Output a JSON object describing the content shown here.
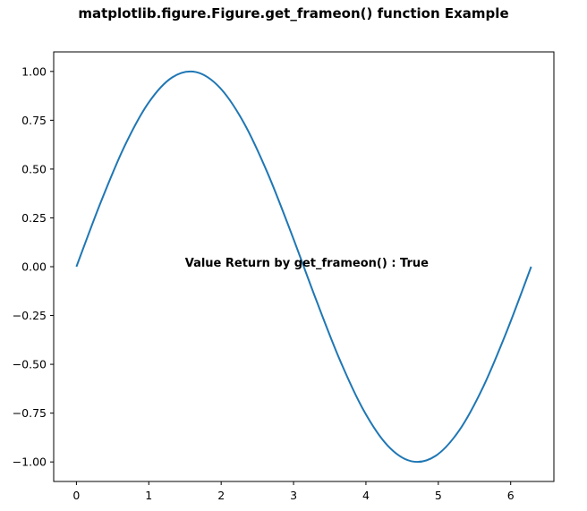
{
  "chart_data": {
    "type": "line",
    "title": "matplotlib.figure.Figure.get_frameon() function Example",
    "xlabel": "",
    "ylabel": "",
    "xlim": [
      -0.314,
      6.597
    ],
    "ylim": [
      -1.1,
      1.1
    ],
    "xticks": [
      0,
      1,
      2,
      3,
      4,
      5,
      6
    ],
    "xtick_labels": [
      "0",
      "1",
      "2",
      "3",
      "4",
      "5",
      "6"
    ],
    "yticks": [
      1.0,
      0.75,
      0.5,
      0.25,
      0.0,
      -0.25,
      -0.5,
      -0.75,
      -1.0
    ],
    "ytick_labels": [
      "1.00",
      "0.75",
      "0.50",
      "0.25",
      "0.00",
      "−0.25",
      "−0.50",
      "−0.75",
      "−1.00"
    ],
    "grid": false,
    "series": [
      {
        "color": "#1f77b4",
        "x": [
          0,
          0.3307,
          0.6614,
          0.9921,
          1.3228,
          1.6535,
          1.9842,
          2.3149,
          2.6456,
          2.9762,
          3.3069,
          3.6376,
          3.9683,
          4.299,
          4.6297,
          4.9604,
          5.2911,
          5.6218,
          5.9525,
          6.2832
        ],
        "y": [
          0,
          0.3247,
          0.6142,
          0.8372,
          0.9694,
          0.9966,
          0.9158,
          0.7357,
          0.4759,
          0.1646,
          -0.1646,
          -0.4759,
          -0.7357,
          -0.9158,
          -0.9966,
          -0.9694,
          -0.8372,
          -0.6142,
          -0.3247,
          0
        ]
      }
    ],
    "annotations": [
      {
        "text": "Value Return by get_frameon() : True",
        "x": 1.5,
        "y": 0.0
      }
    ]
  }
}
